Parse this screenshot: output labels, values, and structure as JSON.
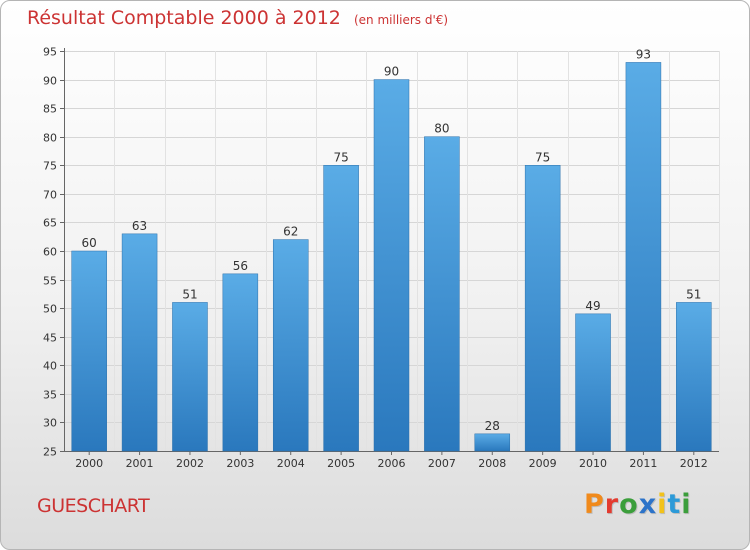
{
  "chart_data": {
    "type": "bar",
    "title": "Résultat Comptable 2000 à 2012",
    "subtitle": "(en milliers d'€)",
    "categories": [
      "2000",
      "2001",
      "2002",
      "2003",
      "2004",
      "2005",
      "2006",
      "2007",
      "2008",
      "2009",
      "2010",
      "2011",
      "2012"
    ],
    "values": [
      60,
      63,
      51,
      56,
      62,
      75,
      90,
      80,
      28,
      75,
      49,
      93,
      51
    ],
    "ylim": [
      25,
      95
    ],
    "yticks": [
      25,
      30,
      35,
      40,
      45,
      50,
      55,
      60,
      65,
      70,
      75,
      80,
      85,
      90,
      95
    ],
    "grid": true,
    "bar_color": "#3a8fd4"
  },
  "footer": {
    "commune": "GUESCHART",
    "logo_text": "Proxiti",
    "logo_colors": [
      "#f08a1c",
      "#e33b2f",
      "#3b9e3b",
      "#2c73c9",
      "#f2c21a",
      "#2c9ad8",
      "#3b9e3b"
    ]
  }
}
